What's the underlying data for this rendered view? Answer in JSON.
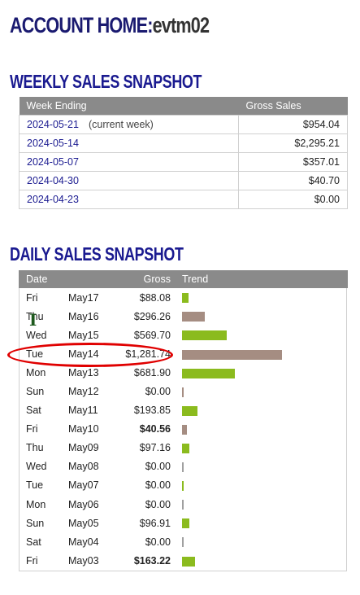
{
  "page": {
    "title_prefix": "ACCOUNT HOME:",
    "title_user": "evtm02"
  },
  "weekly": {
    "title": "WEEKLY SALES SNAPSHOT",
    "headers": {
      "week_ending": "Week Ending",
      "gross_sales": "Gross Sales"
    },
    "rows": [
      {
        "date": "2024-05-21",
        "note": "(current week)",
        "amount": "$954.04"
      },
      {
        "date": "2024-05-14",
        "note": "",
        "amount": "$2,295.21"
      },
      {
        "date": "2024-05-07",
        "note": "",
        "amount": "$357.01"
      },
      {
        "date": "2024-04-30",
        "note": "",
        "amount": "$40.70"
      },
      {
        "date": "2024-04-23",
        "note": "",
        "amount": "$0.00"
      }
    ]
  },
  "daily": {
    "title": "DAILY SALES SNAPSHOT",
    "headers": {
      "date": "Date",
      "gross": "Gross",
      "trend": "Trend"
    },
    "rows": [
      {
        "dow": "Fri",
        "date": "May17",
        "gross": "$88.08",
        "bold": false,
        "bar_color": "green",
        "bar_value": 88.08
      },
      {
        "dow": "Thu",
        "date": "May16",
        "gross": "$296.26",
        "bold": false,
        "bar_color": "brown",
        "bar_value": 296.26
      },
      {
        "dow": "Wed",
        "date": "May15",
        "gross": "$569.70",
        "bold": false,
        "bar_color": "green",
        "bar_value": 569.7
      },
      {
        "dow": "Tue",
        "date": "May14",
        "gross": "$1,281.74",
        "bold": false,
        "bar_color": "brown",
        "bar_value": 1281.74
      },
      {
        "dow": "Mon",
        "date": "May13",
        "gross": "$681.90",
        "bold": false,
        "bar_color": "green",
        "bar_value": 681.9
      },
      {
        "dow": "Sun",
        "date": "May12",
        "gross": "$0.00",
        "bold": false,
        "bar_color": "brown",
        "bar_value": 0
      },
      {
        "dow": "Sat",
        "date": "May11",
        "gross": "$193.85",
        "bold": false,
        "bar_color": "green",
        "bar_value": 193.85
      },
      {
        "dow": "Fri",
        "date": "May10",
        "gross": "$40.56",
        "bold": true,
        "bar_color": "brown",
        "bar_value": 40.56
      },
      {
        "dow": "Thu",
        "date": "May09",
        "gross": "$97.16",
        "bold": false,
        "bar_color": "green",
        "bar_value": 97.16
      },
      {
        "dow": "Wed",
        "date": "May08",
        "gross": "$0.00",
        "bold": false,
        "bar_color": "grey",
        "bar_value": 0
      },
      {
        "dow": "Tue",
        "date": "May07",
        "gross": "$0.00",
        "bold": false,
        "bar_color": "green",
        "bar_value": 0
      },
      {
        "dow": "Mon",
        "date": "May06",
        "gross": "$0.00",
        "bold": false,
        "bar_color": "grey",
        "bar_value": 0
      },
      {
        "dow": "Sun",
        "date": "May05",
        "gross": "$96.91",
        "bold": false,
        "bar_color": "green",
        "bar_value": 96.91
      },
      {
        "dow": "Sat",
        "date": "May04",
        "gross": "$0.00",
        "bold": false,
        "bar_color": "grey",
        "bar_value": 0
      },
      {
        "dow": "Fri",
        "date": "May03",
        "gross": "$163.22",
        "bold": true,
        "bar_color": "green",
        "bar_value": 163.22
      }
    ]
  },
  "colors": {
    "title": "#1a1a70",
    "header_bg": "#8a8a8a",
    "link": "#1a1a90",
    "bar_green": "#8bbb1e",
    "bar_brown": "#a58d82",
    "highlight": "#e00000"
  },
  "overlay": {
    "highlight_target": "Tue May14 $1,281.74",
    "cursor_icon": "text-cursor-icon"
  }
}
